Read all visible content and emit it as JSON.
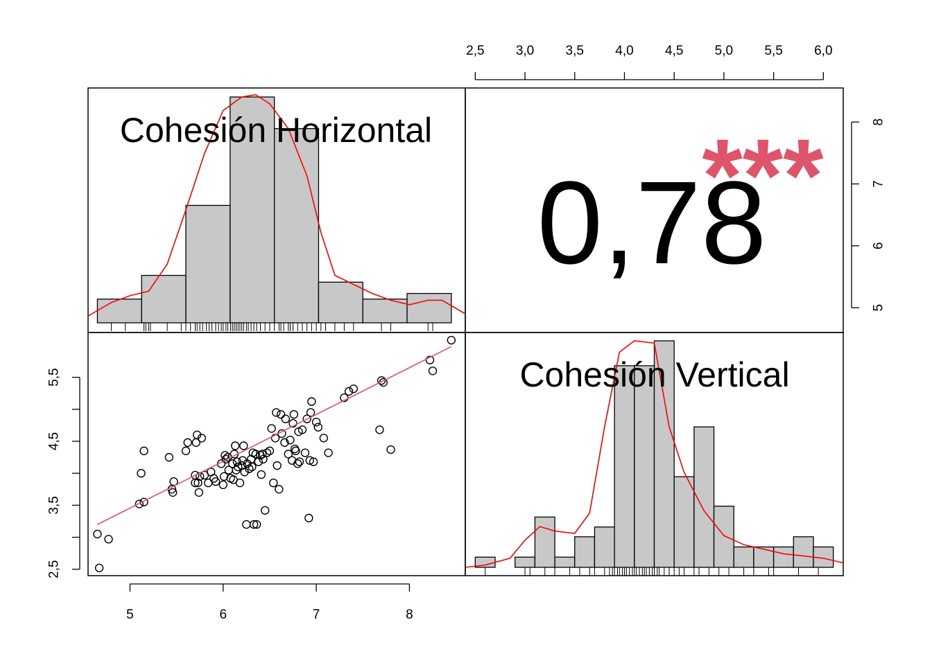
{
  "chart_data": {
    "type": "scatter",
    "variables": [
      "Cohesión Horizontal",
      "Cohesión Vertical"
    ],
    "colors": {
      "hist_fill": "#c8c8c8",
      "density": "#ff0000",
      "fit_line": "#df536b",
      "stars": "#df536b",
      "axis": "#000000"
    },
    "correlation": {
      "text": "0,78",
      "stars": "***"
    },
    "axes": {
      "bottom_ticks": [
        5,
        6,
        7,
        8
      ],
      "bottom_tick_labels": [
        "5",
        "6",
        "7",
        "8"
      ],
      "top_ticks": [
        2.5,
        3.0,
        3.5,
        4.0,
        4.5,
        5.0,
        5.5,
        6.0
      ],
      "top_tick_labels": [
        "2,5",
        "3,0",
        "3,5",
        "4,0",
        "4,5",
        "5,0",
        "5,5",
        "6,0"
      ],
      "left_ticks": [
        2.5,
        3.0,
        3.5,
        4.0,
        4.5,
        5.0,
        5.5
      ],
      "left_tick_labels": [
        "2,5",
        "",
        "3,5",
        "",
        "4,5",
        "",
        "5,5"
      ],
      "right_ticks": [
        5,
        6,
        7,
        8
      ],
      "right_tick_labels": [
        "5",
        "6",
        "7",
        "8"
      ],
      "x_range_horizontal": [
        4.55,
        8.6
      ],
      "x_range_vertical": [
        2.4,
        6.2
      ],
      "y_range_vertical_scatter": [
        2.4,
        6.2
      ],
      "y_range_horizontal_right": [
        4.6,
        8.55
      ]
    },
    "histogram_horizontal": {
      "bin_edges": [
        4.65,
        5.125,
        5.6,
        6.075,
        6.55,
        7.025,
        7.5,
        7.975,
        8.45
      ],
      "density": [
        0.105,
        0.21,
        0.52,
        1.0,
        0.86,
        0.18,
        0.105,
        0.13
      ]
    },
    "histogram_vertical": {
      "bin_edges": [
        2.5,
        2.7,
        2.9,
        3.1,
        3.3,
        3.5,
        3.7,
        3.9,
        4.1,
        4.3,
        4.5,
        4.7,
        4.9,
        5.1,
        5.3,
        5.5,
        5.7,
        5.9,
        6.1
      ],
      "density": [
        0.045,
        0.0,
        0.045,
        0.222,
        0.045,
        0.135,
        0.178,
        0.89,
        0.89,
        1.0,
        0.4,
        0.62,
        0.27,
        0.09,
        0.09,
        0.09,
        0.135,
        0.09
      ]
    },
    "density_horizontal": {
      "x": [
        4.55,
        4.8,
        5.0,
        5.2,
        5.4,
        5.6,
        5.8,
        6.0,
        6.2,
        6.35,
        6.5,
        6.7,
        6.9,
        7.05,
        7.2,
        7.4,
        7.6,
        7.8,
        8.0,
        8.2,
        8.35,
        8.6
      ],
      "y": [
        0.03,
        0.09,
        0.12,
        0.14,
        0.26,
        0.5,
        0.75,
        0.94,
        1.0,
        1.01,
        0.97,
        0.86,
        0.65,
        0.4,
        0.21,
        0.17,
        0.13,
        0.1,
        0.08,
        0.1,
        0.1,
        0.04
      ]
    },
    "density_vertical": {
      "x": [
        2.4,
        2.6,
        2.85,
        3.0,
        3.15,
        3.3,
        3.5,
        3.65,
        3.8,
        3.95,
        4.1,
        4.3,
        4.45,
        4.6,
        4.8,
        5.0,
        5.2,
        5.4,
        5.6,
        5.8,
        6.0,
        6.2
      ],
      "y": [
        0.0,
        0.01,
        0.04,
        0.12,
        0.18,
        0.16,
        0.15,
        0.24,
        0.62,
        0.95,
        1.0,
        0.99,
        0.62,
        0.42,
        0.25,
        0.14,
        0.1,
        0.08,
        0.06,
        0.05,
        0.04,
        0.02
      ]
    },
    "rug_horizontal": [
      4.8,
      4.95,
      5.15,
      5.17,
      5.2,
      5.22,
      5.4,
      5.55,
      5.6,
      5.65,
      5.7,
      5.72,
      5.75,
      5.78,
      5.82,
      5.85,
      5.88,
      5.92,
      5.95,
      5.98,
      6.0,
      6.03,
      6.05,
      6.08,
      6.1,
      6.12,
      6.14,
      6.16,
      6.18,
      6.2,
      6.22,
      6.25,
      6.27,
      6.3,
      6.33,
      6.36,
      6.4,
      6.45,
      6.5,
      6.55,
      6.6,
      6.62,
      6.65,
      6.7,
      6.72,
      6.75,
      6.8,
      6.85,
      6.9,
      6.95,
      7.0,
      7.05,
      7.1,
      7.2,
      7.3,
      7.4,
      7.7,
      7.8,
      8.2,
      8.25
    ],
    "rug_vertical": [
      2.6,
      3.0,
      3.05,
      3.2,
      3.3,
      3.45,
      3.55,
      3.65,
      3.7,
      3.8,
      3.85,
      3.88,
      3.9,
      3.93,
      3.95,
      3.98,
      4.0,
      4.02,
      4.05,
      4.08,
      4.1,
      4.12,
      4.15,
      4.18,
      4.2,
      4.22,
      4.25,
      4.28,
      4.3,
      4.33,
      4.35,
      4.4,
      4.45,
      4.5,
      4.55,
      4.6,
      4.7,
      4.75,
      4.85,
      4.95,
      5.05,
      5.2,
      5.3,
      5.45,
      5.5,
      5.75,
      5.95
    ],
    "scatter_points": [
      [
        4.65,
        3.05
      ],
      [
        4.67,
        2.52
      ],
      [
        4.77,
        2.97
      ],
      [
        5.1,
        3.52
      ],
      [
        5.12,
        4.0
      ],
      [
        5.15,
        4.35
      ],
      [
        5.15,
        3.55
      ],
      [
        5.42,
        4.25
      ],
      [
        5.45,
        3.75
      ],
      [
        5.46,
        3.7
      ],
      [
        5.47,
        3.87
      ],
      [
        5.6,
        4.35
      ],
      [
        5.62,
        4.48
      ],
      [
        5.7,
        3.85
      ],
      [
        5.7,
        3.97
      ],
      [
        5.71,
        4.48
      ],
      [
        5.72,
        4.6
      ],
      [
        5.73,
        3.85
      ],
      [
        5.74,
        3.7
      ],
      [
        5.75,
        3.95
      ],
      [
        5.77,
        4.55
      ],
      [
        5.8,
        3.97
      ],
      [
        5.84,
        3.85
      ],
      [
        5.87,
        4.02
      ],
      [
        5.9,
        3.92
      ],
      [
        5.92,
        3.87
      ],
      [
        5.98,
        4.15
      ],
      [
        6.0,
        3.82
      ],
      [
        6.01,
        3.95
      ],
      [
        6.02,
        4.28
      ],
      [
        6.03,
        4.22
      ],
      [
        6.05,
        4.25
      ],
      [
        6.06,
        4.05
      ],
      [
        6.08,
        3.92
      ],
      [
        6.1,
        4.15
      ],
      [
        6.11,
        3.9
      ],
      [
        6.12,
        4.3
      ],
      [
        6.13,
        4.43
      ],
      [
        6.14,
        4.05
      ],
      [
        6.15,
        4.18
      ],
      [
        6.16,
        4.1
      ],
      [
        6.18,
        3.85
      ],
      [
        6.2,
        4.12
      ],
      [
        6.21,
        4.2
      ],
      [
        6.22,
        4.43
      ],
      [
        6.23,
        4.02
      ],
      [
        6.25,
        3.2
      ],
      [
        6.26,
        4.15
      ],
      [
        6.28,
        4.07
      ],
      [
        6.3,
        4.22
      ],
      [
        6.31,
        4.1
      ],
      [
        6.32,
        4.32
      ],
      [
        6.33,
        3.2
      ],
      [
        6.35,
        4.3
      ],
      [
        6.36,
        3.2
      ],
      [
        6.38,
        4.18
      ],
      [
        6.4,
        4.28
      ],
      [
        6.41,
        3.98
      ],
      [
        6.42,
        4.3
      ],
      [
        6.43,
        4.22
      ],
      [
        6.45,
        3.42
      ],
      [
        6.47,
        4.32
      ],
      [
        6.5,
        4.35
      ],
      [
        6.52,
        4.7
      ],
      [
        6.54,
        3.85
      ],
      [
        6.56,
        4.55
      ],
      [
        6.57,
        4.95
      ],
      [
        6.58,
        4.12
      ],
      [
        6.6,
        3.75
      ],
      [
        6.62,
        4.92
      ],
      [
        6.63,
        4.62
      ],
      [
        6.66,
        4.48
      ],
      [
        6.67,
        4.85
      ],
      [
        6.7,
        4.3
      ],
      [
        6.72,
        4.52
      ],
      [
        6.74,
        4.2
      ],
      [
        6.75,
        4.78
      ],
      [
        6.76,
        4.92
      ],
      [
        6.77,
        4.38
      ],
      [
        6.78,
        4.35
      ],
      [
        6.8,
        4.15
      ],
      [
        6.81,
        4.65
      ],
      [
        6.82,
        4.18
      ],
      [
        6.85,
        4.68
      ],
      [
        6.88,
        4.32
      ],
      [
        6.9,
        4.85
      ],
      [
        6.92,
        3.3
      ],
      [
        6.93,
        4.2
      ],
      [
        6.94,
        4.95
      ],
      [
        6.95,
        5.12
      ],
      [
        6.97,
        4.18
      ],
      [
        7.0,
        4.8
      ],
      [
        7.02,
        4.72
      ],
      [
        7.08,
        4.55
      ],
      [
        7.13,
        4.32
      ],
      [
        7.3,
        5.18
      ],
      [
        7.35,
        5.28
      ],
      [
        7.4,
        5.32
      ],
      [
        7.7,
        5.45
      ],
      [
        7.72,
        5.42
      ],
      [
        7.68,
        4.68
      ],
      [
        7.8,
        4.37
      ],
      [
        8.22,
        5.77
      ],
      [
        8.25,
        5.6
      ],
      [
        8.45,
        6.08
      ]
    ],
    "fit_line": {
      "x": [
        4.65,
        8.45
      ],
      "y": [
        3.2,
        5.98
      ]
    }
  }
}
